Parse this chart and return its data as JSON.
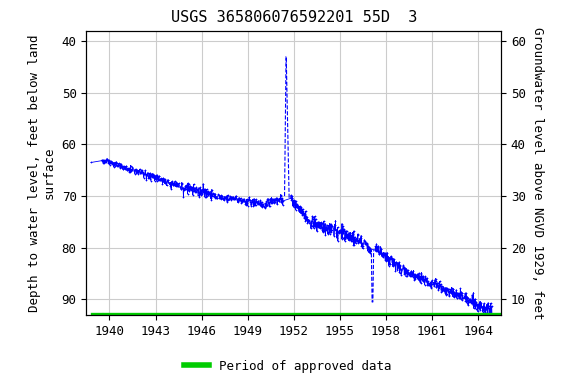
{
  "title": "USGS 365806076592201 55D  3",
  "ylabel_left": "Depth to water level, feet below land\nsurface",
  "ylabel_right": "Groundwater level above NGVD 1929, feet",
  "xlabel": "",
  "ylim_left": [
    93,
    38
  ],
  "ylim_right": [
    7,
    62
  ],
  "xlim": [
    1938.5,
    1965.5
  ],
  "yticks_left": [
    40,
    50,
    60,
    70,
    80,
    90
  ],
  "yticks_right": [
    10,
    20,
    30,
    40,
    50,
    60
  ],
  "xticks": [
    1940,
    1943,
    1946,
    1949,
    1952,
    1955,
    1958,
    1961,
    1964
  ],
  "line_color": "#0000ff",
  "marker_color": "#0000ff",
  "grid_color": "#cccccc",
  "bg_color": "#ffffff",
  "plot_bg_color": "#ffffff",
  "approved_bar_color": "#00cc00",
  "approved_bar_y": 93.5,
  "legend_label": "Period of approved data",
  "title_fontsize": 11,
  "axis_label_fontsize": 9,
  "tick_fontsize": 9
}
